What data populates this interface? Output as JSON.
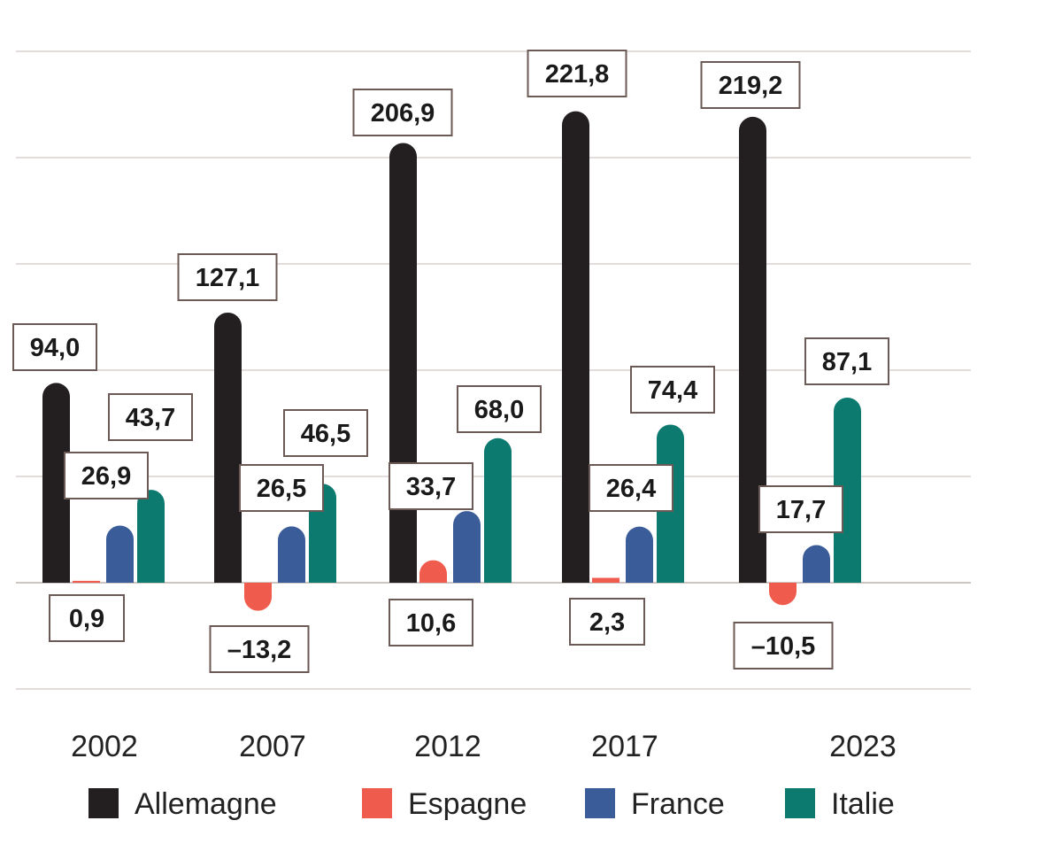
{
  "chart_data": {
    "type": "bar",
    "title": "",
    "xlabel": "",
    "ylabel": "",
    "categories": [
      "2002",
      "2007",
      "2012",
      "2017",
      "2023"
    ],
    "series": [
      {
        "name": "Allemagne",
        "color": "#231f20",
        "values": [
          94.0,
          127.1,
          206.9,
          221.8,
          219.2
        ],
        "labels": [
          "94,0",
          "127,1",
          "206,9",
          "221,8",
          "219,2"
        ]
      },
      {
        "name": "Espagne",
        "color": "#ef5b4c",
        "values": [
          0.9,
          -13.2,
          10.6,
          2.3,
          -10.5
        ],
        "labels": [
          "0,9",
          "–13,2",
          "10,6",
          "2,3",
          "–10,5"
        ]
      },
      {
        "name": "France",
        "color": "#3a5d99",
        "values": [
          26.9,
          26.5,
          33.7,
          26.4,
          17.7
        ],
        "labels": [
          "26,9",
          "26,5",
          "33,7",
          "26,4",
          "17,7"
        ]
      },
      {
        "name": "Italie",
        "color": "#0d7a70",
        "values": [
          43.7,
          46.5,
          68.0,
          74.4,
          87.1
        ],
        "labels": [
          "43,7",
          "46,5",
          "68,0",
          "74,4",
          "87,1"
        ]
      }
    ],
    "ylim": [
      -50,
      250
    ],
    "grid": true,
    "legend": "bottom"
  }
}
